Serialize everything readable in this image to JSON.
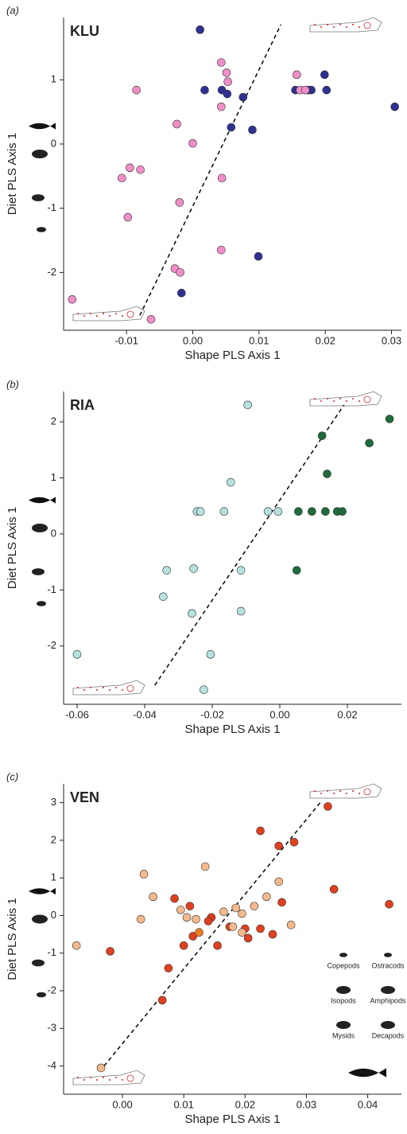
{
  "chart_data": [
    {
      "type": "scatter",
      "panel_label": "(a)",
      "title": "KLU",
      "xlabel": "Shape PLS Axis 1",
      "ylabel": "Diet PLS Axis 1",
      "xlim": [
        -0.0195,
        0.0315
      ],
      "ylim": [
        -2.9,
        1.97
      ],
      "xticks": [
        -0.01,
        {
          "value": 0,
          "label": "0.00"
        },
        0.01,
        0.02,
        0.03
      ],
      "yticks": [
        -2,
        -1,
        0,
        1
      ],
      "series": [
        {
          "color": "#2e3192",
          "x": [
            0.0011,
            0.0018,
            0.0044,
            0.0052,
            0.0076,
            0.0058,
            0.009,
            0.0199,
            0.0202,
            0.0179,
            0.0174,
            0.0155,
            0.0305,
            0.0099,
            -0.0017
          ],
          "values": [
            1.78,
            0.84,
            0.84,
            0.78,
            0.73,
            0.26,
            0.22,
            1.08,
            0.84,
            0.84,
            0.84,
            0.84,
            0.58,
            -1.75,
            -2.32
          ]
        },
        {
          "color": "#f08ec8",
          "x": [
            0.0043,
            0.0051,
            0.0053,
            -0.0085,
            0.0043,
            -0.0024,
            0.0,
            -0.0079,
            -0.0095,
            -0.0107,
            0.0044,
            -0.002,
            -0.0098,
            0.0043,
            -0.0027,
            -0.0019,
            -0.0182,
            -0.0063,
            0.0157,
            0.0162,
            0.017
          ],
          "values": [
            1.27,
            1.11,
            0.97,
            0.84,
            0.58,
            0.31,
            0.01,
            -0.4,
            -0.37,
            -0.53,
            -0.53,
            -0.91,
            -1.14,
            -1.65,
            -1.94,
            -2.0,
            -2.42,
            -2.73,
            1.08,
            0.84,
            0.84
          ]
        }
      ],
      "trend": {
        "x": [
          -0.008,
          0.0133
        ],
        "y": [
          -2.67,
          1.86
        ]
      }
    },
    {
      "type": "scatter",
      "panel_label": "(b)",
      "title": "RIA",
      "xlabel": "Shape PLS Axis 1",
      "ylabel": "Diet PLS Axis 1",
      "xlim": [
        -0.064,
        0.036
      ],
      "ylim": [
        -3.04,
        2.54
      ],
      "xticks": [
        -0.06,
        -0.04,
        -0.02,
        {
          "value": 0,
          "label": "0.00"
        },
        0.02
      ],
      "yticks": [
        -2,
        -1,
        0,
        1,
        2
      ],
      "series": [
        {
          "color": "#b5e2df",
          "x": [
            -0.0095,
            -0.0145,
            -0.0245,
            -0.0235,
            -0.0165,
            -0.0035,
            -0.0005,
            -0.0335,
            -0.0255,
            -0.0115,
            -0.0345,
            -0.026,
            -0.0115,
            -0.06,
            -0.0205,
            -0.0225
          ],
          "values": [
            2.3,
            0.92,
            0.4,
            0.4,
            0.4,
            0.4,
            0.4,
            -0.65,
            -0.62,
            -0.65,
            -1.12,
            -1.42,
            -1.38,
            -2.15,
            -2.15,
            -2.78
          ]
        },
        {
          "color": "#1e6b3c",
          "x": [
            0.0325,
            0.0265,
            0.0125,
            0.014,
            0.0055,
            0.0095,
            0.0135,
            0.017,
            0.0185,
            0.005
          ],
          "values": [
            2.05,
            1.62,
            1.75,
            1.07,
            0.4,
            0.4,
            0.4,
            0.4,
            0.4,
            -0.65
          ]
        }
      ],
      "trend": {
        "x": [
          -0.037,
          0.019
        ],
        "y": [
          -2.7,
          2.3
        ]
      }
    },
    {
      "type": "scatter",
      "panel_label": "(c)",
      "title": "VEN",
      "xlabel": "Shape PLS Axis 1",
      "ylabel": "Diet PLS Axis 1",
      "xlim": [
        -0.0096,
        0.0455
      ],
      "ylim": [
        -4.75,
        3.5
      ],
      "xticks": [
        {
          "value": 0,
          "label": "0.00"
        },
        0.01,
        0.02,
        0.03,
        0.04
      ],
      "yticks": [
        -4,
        -3,
        -2,
        -1,
        0,
        1,
        2,
        3
      ],
      "series": [
        {
          "color": "#e0401f",
          "x": [
            0.0335,
            0.0225,
            0.0255,
            0.028,
            0.0345,
            0.0435,
            0.026,
            0.0085,
            0.011,
            0.0145,
            0.014,
            0.02,
            0.0175,
            0.0225,
            0.0245,
            0.0205,
            0.0115,
            0.01,
            0.0155,
            -0.002,
            0.0075,
            0.0065
          ],
          "values": [
            2.9,
            2.25,
            1.85,
            1.95,
            0.7,
            0.3,
            0.35,
            0.45,
            0.25,
            -0.05,
            -0.15,
            -0.35,
            -0.3,
            -0.35,
            -0.5,
            -0.6,
            -0.55,
            -0.8,
            -0.8,
            -0.95,
            -1.4,
            -2.25
          ]
        },
        {
          "color": "#f6b98c",
          "x": [
            0.0035,
            0.0135,
            0.0255,
            0.005,
            0.003,
            0.0095,
            0.0105,
            0.012,
            0.0185,
            0.0215,
            0.0235,
            0.0195,
            0.0165,
            0.018,
            0.0195,
            0.0275,
            -0.0075,
            -0.0035
          ],
          "values": [
            1.1,
            1.3,
            0.9,
            0.5,
            -0.1,
            0.15,
            -0.05,
            -0.1,
            0.2,
            0.25,
            0.5,
            0.05,
            0.1,
            -0.3,
            -0.45,
            -0.25,
            -0.8,
            -4.05
          ]
        },
        {
          "color": "#f07c22",
          "x": [
            0.0125
          ],
          "values": [
            -0.45
          ]
        }
      ],
      "trend": {
        "x": [
          -0.003,
          0.0325
        ],
        "y": [
          -4.0,
          3.05
        ]
      },
      "legend_labels": [
        "Copepods",
        "Ostracods",
        "Isopods",
        "Amphipods",
        "Mysids",
        "Decapods",
        "Fish"
      ]
    }
  ]
}
